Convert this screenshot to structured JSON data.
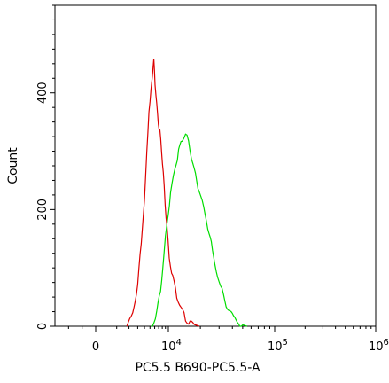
{
  "chart_data": {
    "type": "line",
    "title": "",
    "xlabel": "PC5.5 B690-PC5.5-A",
    "ylabel": "Count",
    "x_scale": "biexponential",
    "xlim": [
      -3000,
      1000000
    ],
    "ylim": [
      0,
      550
    ],
    "grid": false,
    "legend": "none",
    "x_ticks": [
      {
        "value": 0,
        "base": "0",
        "exp": ""
      },
      {
        "value": 10000,
        "base": "10",
        "exp": "4"
      },
      {
        "value": 100000,
        "base": "10",
        "exp": "5"
      },
      {
        "value": 1000000,
        "base": "10",
        "exp": "6"
      }
    ],
    "y_ticks": [
      {
        "value": 0,
        "label": "0"
      },
      {
        "value": 200,
        "label": "200"
      },
      {
        "value": 400,
        "label": "400"
      }
    ],
    "series": [
      {
        "color": "#dd0000",
        "x": [
          1800,
          2400,
          3000,
          3500,
          4000,
          4400,
          4800,
          5200,
          5500,
          5800,
          6100,
          6500,
          6900,
          7300,
          7800,
          8300,
          8900,
          9500,
          10200,
          11000,
          12000,
          13200,
          14500,
          16000,
          17500,
          19500
        ],
        "y": [
          0,
          20,
          70,
          140,
          220,
          300,
          370,
          400,
          430,
          455,
          420,
          380,
          350,
          330,
          300,
          260,
          215,
          170,
          120,
          80,
          50,
          30,
          15,
          8,
          3,
          0
        ]
      },
      {
        "color": "#00dd00",
        "x": [
          5200,
          6500,
          7500,
          8500,
          9500,
          10500,
          11500,
          12500,
          13500,
          14500,
          15500,
          16500,
          18000,
          19500,
          21500,
          23500,
          26000,
          29000,
          32000,
          36000,
          41000,
          47000,
          55000
        ],
        "y": [
          0,
          20,
          60,
          120,
          180,
          230,
          270,
          300,
          315,
          330,
          320,
          290,
          260,
          230,
          200,
          170,
          130,
          90,
          60,
          30,
          12,
          4,
          0
        ]
      }
    ]
  }
}
